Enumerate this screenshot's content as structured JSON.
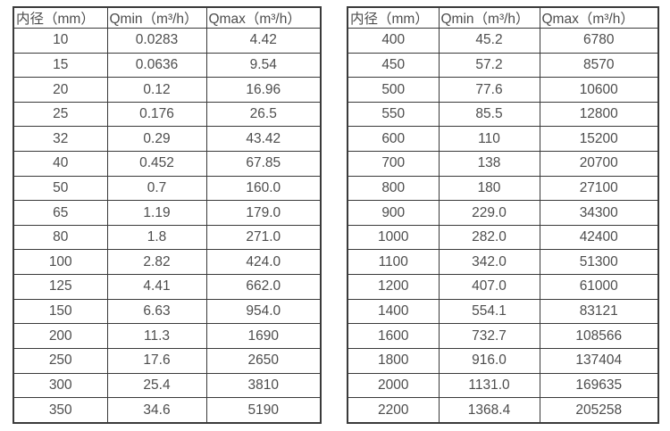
{
  "colors": {
    "border": "#3a3a3a",
    "text": "#4d4d4d",
    "background": "#ffffff"
  },
  "chart_data": [
    {
      "type": "table",
      "name": "flow-rate-table-small-diameters",
      "columns": [
        "内径（mm）",
        "Qmin（m³/h）",
        "Qmax（m³/h）"
      ],
      "rows": [
        [
          "10",
          "0.0283",
          "4.42"
        ],
        [
          "15",
          "0.0636",
          "9.54"
        ],
        [
          "20",
          "0.12",
          "16.96"
        ],
        [
          "25",
          "0.176",
          "26.5"
        ],
        [
          "32",
          "0.29",
          "43.42"
        ],
        [
          "40",
          "0.452",
          "67.85"
        ],
        [
          "50",
          "0.7",
          "160.0"
        ],
        [
          "65",
          "1.19",
          "179.0"
        ],
        [
          "80",
          "1.8",
          "271.0"
        ],
        [
          "100",
          "2.82",
          "424.0"
        ],
        [
          "125",
          "4.41",
          "662.0"
        ],
        [
          "150",
          "6.63",
          "954.0"
        ],
        [
          "200",
          "11.3",
          "1690"
        ],
        [
          "250",
          "17.6",
          "2650"
        ],
        [
          "300",
          "25.4",
          "3810"
        ],
        [
          "350",
          "34.6",
          "5190"
        ]
      ]
    },
    {
      "type": "table",
      "name": "flow-rate-table-large-diameters",
      "columns": [
        "内径（mm）",
        "Qmin（m³/h）",
        "Qmax（m³/h）"
      ],
      "rows": [
        [
          "400",
          "45.2",
          "6780"
        ],
        [
          "450",
          "57.2",
          "8570"
        ],
        [
          "500",
          "77.6",
          "10600"
        ],
        [
          "550",
          "85.5",
          "12800"
        ],
        [
          "600",
          "110",
          "15200"
        ],
        [
          "700",
          "138",
          "20700"
        ],
        [
          "800",
          "180",
          "27100"
        ],
        [
          "900",
          "229.0",
          "34300"
        ],
        [
          "1000",
          "282.0",
          "42400"
        ],
        [
          "1100",
          "342.0",
          "51300"
        ],
        [
          "1200",
          "407.0",
          "61000"
        ],
        [
          "1400",
          "554.1",
          "83121"
        ],
        [
          "1600",
          "732.7",
          "108566"
        ],
        [
          "1800",
          "916.0",
          "137404"
        ],
        [
          "2000",
          "1131.0",
          "169635"
        ],
        [
          "2200",
          "1368.4",
          "205258"
        ]
      ]
    }
  ]
}
